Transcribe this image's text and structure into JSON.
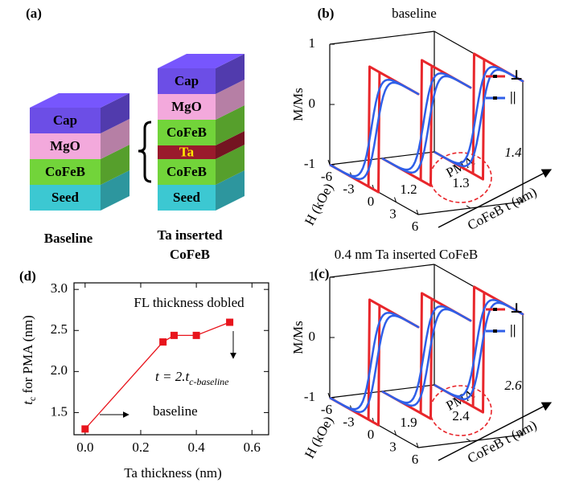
{
  "diagram": {
    "panel_label": "(a)",
    "layer_colors": {
      "Seed": "#3cc8d2",
      "CoFeB": "#72d43a",
      "MgO": "#f3a9dc",
      "Cap": "#6c4ee6",
      "Ta": "#9a1a2c"
    },
    "baseline": {
      "layers": [
        "Seed",
        "CoFeB",
        "MgO",
        "Cap"
      ],
      "caption": "Baseline"
    },
    "inserted": {
      "layers": [
        "Seed",
        "CoFeB",
        "Ta",
        "CoFeB",
        "MgO",
        "Cap"
      ],
      "caption": [
        "Ta inserted",
        "CoFeB"
      ]
    }
  },
  "chart_data": [
    {
      "type": "line",
      "panel_label": "(d)",
      "color": "#e8141c",
      "x": [
        0,
        0.28,
        0.32,
        0.4,
        0.52
      ],
      "values": [
        1.3,
        2.36,
        2.44,
        2.44,
        2.6
      ],
      "xlim": [
        -0.04,
        0.66
      ],
      "ylim": [
        1.23,
        3.08
      ],
      "xticks": [
        {
          "value": 0,
          "label": "0.0"
        },
        0.2,
        0.4,
        0.6
      ],
      "yticks": [
        1.5,
        {
          "value": 2,
          "label": "2.0"
        },
        2.5,
        {
          "value": 3,
          "label": "3.0"
        }
      ],
      "xlabel": "Ta thickness (nm)",
      "ylabel": {
        "main": "t",
        "sub": "c",
        "rest": " for PMA (nm)"
      },
      "annotations": {
        "top": "FL thickness dobled",
        "formula": {
          "main": "t = 2.t",
          "sub": "c-baseline"
        },
        "baseline": "baseline"
      }
    },
    {
      "type": "hysteresis3d",
      "panel_label": "(b)",
      "title": "baseline",
      "ylabel": "M/Ms",
      "xlabel": "H (kOe)",
      "zlabel": "CoFeB t (nm)",
      "xlim": [
        -6,
        6
      ],
      "ylim": [
        -1,
        1
      ],
      "xticks": [
        -6,
        -3,
        0,
        3,
        6
      ],
      "yticks": [
        -1,
        0,
        1
      ],
      "zticks": [
        1.2,
        1.3,
        1.4
      ],
      "annotation": "PMA",
      "legend": [
        {
          "name": "⊥",
          "color": "#e8262b"
        },
        {
          "name": "||",
          "color": "#2f5fe8"
        }
      ]
    },
    {
      "type": "hysteresis3d",
      "panel_label": "(c)",
      "title": "0.4 nm Ta inserted CoFeB",
      "ylabel": "M/Ms",
      "xlabel": "H (kOe)",
      "zlabel": "CoFeB t (nm)",
      "xlim": [
        -6,
        6
      ],
      "ylim": [
        -1,
        1
      ],
      "xticks": [
        -6,
        -3,
        0,
        3,
        6
      ],
      "yticks": [
        -1,
        0,
        1
      ],
      "zticks": [
        1.9,
        2.4,
        2.6
      ],
      "annotation": "PMA",
      "legend": [
        {
          "name": "⊥",
          "color": "#e8262b"
        },
        {
          "name": "||",
          "color": "#2f5fe8"
        }
      ]
    }
  ]
}
